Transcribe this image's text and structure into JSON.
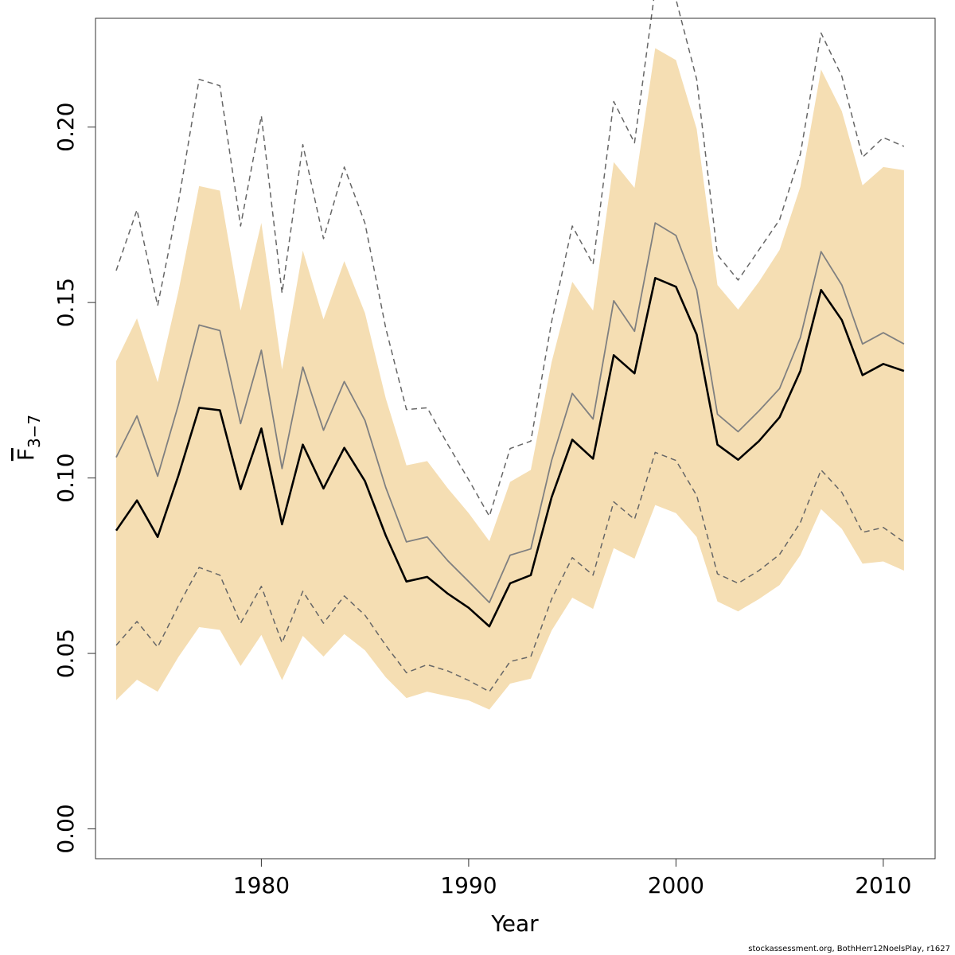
{
  "chart_data": {
    "type": "line",
    "xlabel": "Year",
    "ylabel": {
      "main": "F",
      "subscript": "3−7",
      "overline": true
    },
    "xlim": [
      1972,
      2012.5
    ],
    "ylim": [
      -0.0085,
      0.231
    ],
    "x_ticks": [
      1980,
      1990,
      2000,
      2010
    ],
    "y_ticks": [
      0.0,
      0.05,
      0.1,
      0.15,
      0.2
    ],
    "y_tick_labels": [
      "0.00",
      "0.05",
      "0.10",
      "0.15",
      "0.20"
    ],
    "grid": false,
    "legend": "none",
    "colors": {
      "band": "#f5deb3",
      "estimate": "#000000",
      "alt_estimate": "#808080",
      "ci_dashed": "#666666"
    },
    "x": [
      1973,
      1974,
      1975,
      1976,
      1977,
      1978,
      1979,
      1980,
      1981,
      1982,
      1983,
      1984,
      1985,
      1986,
      1987,
      1988,
      1989,
      1990,
      1991,
      1992,
      1993,
      1994,
      1995,
      1996,
      1997,
      1998,
      1999,
      2000,
      2001,
      2002,
      2003,
      2004,
      2005,
      2006,
      2007,
      2008,
      2009,
      2010,
      2011
    ],
    "series": [
      {
        "role": "band_upper",
        "values": [
          0.1333,
          0.1455,
          0.1273,
          0.1532,
          0.1832,
          0.1819,
          0.1477,
          0.1727,
          0.1309,
          0.1648,
          0.1452,
          0.1618,
          0.147,
          0.1227,
          0.1036,
          0.1048,
          0.097,
          0.09,
          0.082,
          0.0989,
          0.1023,
          0.133,
          0.1559,
          0.1477,
          0.19,
          0.1827,
          0.2225,
          0.2191,
          0.1995,
          0.155,
          0.148,
          0.1559,
          0.165,
          0.183,
          0.2164,
          0.2045,
          0.1834,
          0.1886,
          0.1877
        ]
      },
      {
        "role": "band_lower",
        "values": [
          0.0367,
          0.0425,
          0.0391,
          0.049,
          0.0575,
          0.0567,
          0.0464,
          0.0553,
          0.0424,
          0.055,
          0.0491,
          0.0555,
          0.0509,
          0.0432,
          0.0373,
          0.0391,
          0.0378,
          0.0366,
          0.034,
          0.0414,
          0.0428,
          0.0565,
          0.0659,
          0.0627,
          0.08,
          0.077,
          0.0923,
          0.09,
          0.0832,
          0.0648,
          0.062,
          0.0655,
          0.0695,
          0.078,
          0.0911,
          0.0855,
          0.0756,
          0.0762,
          0.0736
        ]
      },
      {
        "role": "dashed_upper",
        "values": [
          0.1591,
          0.1764,
          0.1491,
          0.1786,
          0.2136,
          0.2118,
          0.1718,
          0.2032,
          0.1527,
          0.195,
          0.1682,
          0.1886,
          0.1726,
          0.1427,
          0.1195,
          0.12,
          0.1095,
          0.0995,
          0.0891,
          0.1084,
          0.1105,
          0.1445,
          0.1718,
          0.1609,
          0.2073,
          0.1955,
          0.2395,
          0.2364,
          0.2136,
          0.1636,
          0.1564,
          0.165,
          0.1736,
          0.1923,
          0.2268,
          0.2145,
          0.1914,
          0.197,
          0.1945
        ]
      },
      {
        "role": "dashed_lower",
        "values": [
          0.0523,
          0.0591,
          0.0518,
          0.0636,
          0.0745,
          0.0723,
          0.0586,
          0.0691,
          0.053,
          0.0677,
          0.0586,
          0.0664,
          0.0609,
          0.0523,
          0.0445,
          0.0468,
          0.045,
          0.0423,
          0.0391,
          0.0477,
          0.0491,
          0.0655,
          0.0773,
          0.0723,
          0.0932,
          0.0882,
          0.1073,
          0.105,
          0.095,
          0.0727,
          0.07,
          0.0736,
          0.0782,
          0.0873,
          0.1023,
          0.0959,
          0.0845,
          0.0859,
          0.0818
        ]
      },
      {
        "role": "estimate_grey",
        "values": [
          0.1059,
          0.1177,
          0.1005,
          0.1209,
          0.1436,
          0.142,
          0.1155,
          0.1364,
          0.1027,
          0.1316,
          0.1136,
          0.1275,
          0.1164,
          0.0973,
          0.0818,
          0.0832,
          0.0764,
          0.0705,
          0.0645,
          0.078,
          0.0798,
          0.105,
          0.1241,
          0.1168,
          0.1505,
          0.1418,
          0.1727,
          0.1691,
          0.1536,
          0.1182,
          0.1132,
          0.1191,
          0.1255,
          0.14,
          0.1645,
          0.155,
          0.1382,
          0.1414,
          0.1382
        ]
      },
      {
        "role": "estimate",
        "values": [
          0.085,
          0.0936,
          0.0832,
          0.1007,
          0.12,
          0.1193,
          0.0968,
          0.1141,
          0.0868,
          0.1095,
          0.097,
          0.1086,
          0.0991,
          0.0836,
          0.0705,
          0.0718,
          0.067,
          0.063,
          0.0577,
          0.07,
          0.0723,
          0.0945,
          0.1109,
          0.1055,
          0.135,
          0.1298,
          0.157,
          0.1545,
          0.1409,
          0.1095,
          0.1052,
          0.1105,
          0.1173,
          0.1305,
          0.1536,
          0.145,
          0.1293,
          0.1325,
          0.1305
        ]
      }
    ]
  },
  "footer": "stockassessment.org, BothHerr12NoelsPlay, r1627"
}
